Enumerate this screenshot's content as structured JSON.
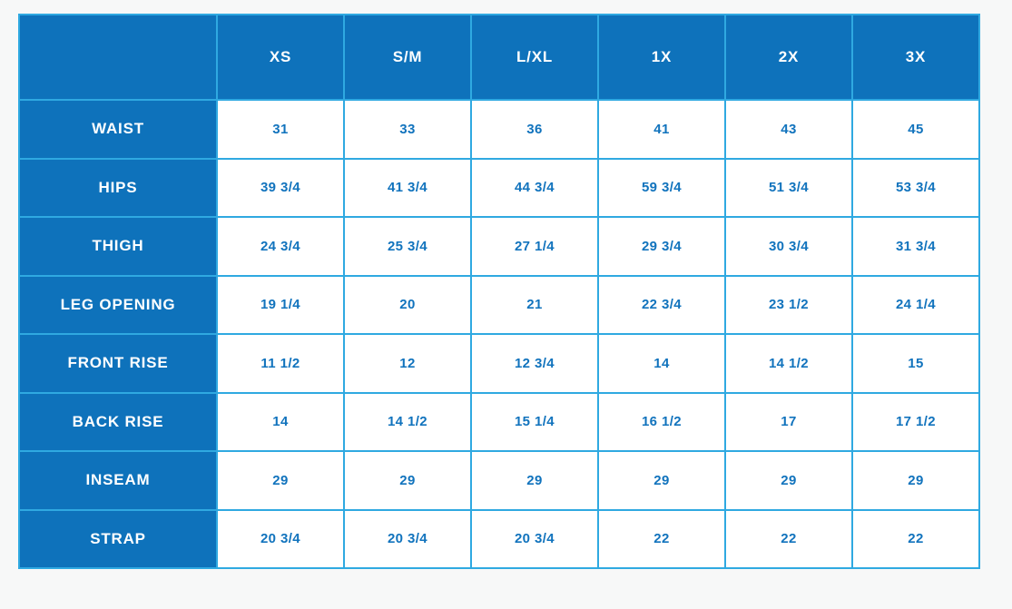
{
  "colors": {
    "fill_blue": "#0e72bb",
    "grid_blue": "#2fa9e1",
    "value_blue": "#1173bd",
    "cell_white": "#ffffff",
    "page_background": "#f7f8f8"
  },
  "chart_data": {
    "type": "table",
    "title": "",
    "corner_label": "",
    "columns": [
      "XS",
      "S/M",
      "L/XL",
      "1X",
      "2X",
      "3X"
    ],
    "rows": [
      {
        "label": "WAIST",
        "values": [
          "31",
          "33",
          "36",
          "41",
          "43",
          "45"
        ]
      },
      {
        "label": "HIPS",
        "values": [
          "39 3/4",
          "41 3/4",
          "44 3/4",
          "59 3/4",
          "51 3/4",
          "53 3/4"
        ]
      },
      {
        "label": "THIGH",
        "values": [
          "24 3/4",
          "25 3/4",
          "27 1/4",
          "29 3/4",
          "30 3/4",
          "31 3/4"
        ]
      },
      {
        "label": "LEG OPENING",
        "values": [
          "19 1/4",
          "20",
          "21",
          "22 3/4",
          "23 1/2",
          "24 1/4"
        ]
      },
      {
        "label": "FRONT RISE",
        "values": [
          "11 1/2",
          "12",
          "12 3/4",
          "14",
          "14 1/2",
          "15"
        ]
      },
      {
        "label": "BACK RISE",
        "values": [
          "14",
          "14 1/2",
          "15 1/4",
          "16 1/2",
          "17",
          "17 1/2"
        ]
      },
      {
        "label": "INSEAM",
        "values": [
          "29",
          "29",
          "29",
          "29",
          "29",
          "29"
        ]
      },
      {
        "label": "STRAP",
        "values": [
          "20 3/4",
          "20 3/4",
          "20 3/4",
          "22",
          "22",
          "22"
        ]
      }
    ]
  }
}
